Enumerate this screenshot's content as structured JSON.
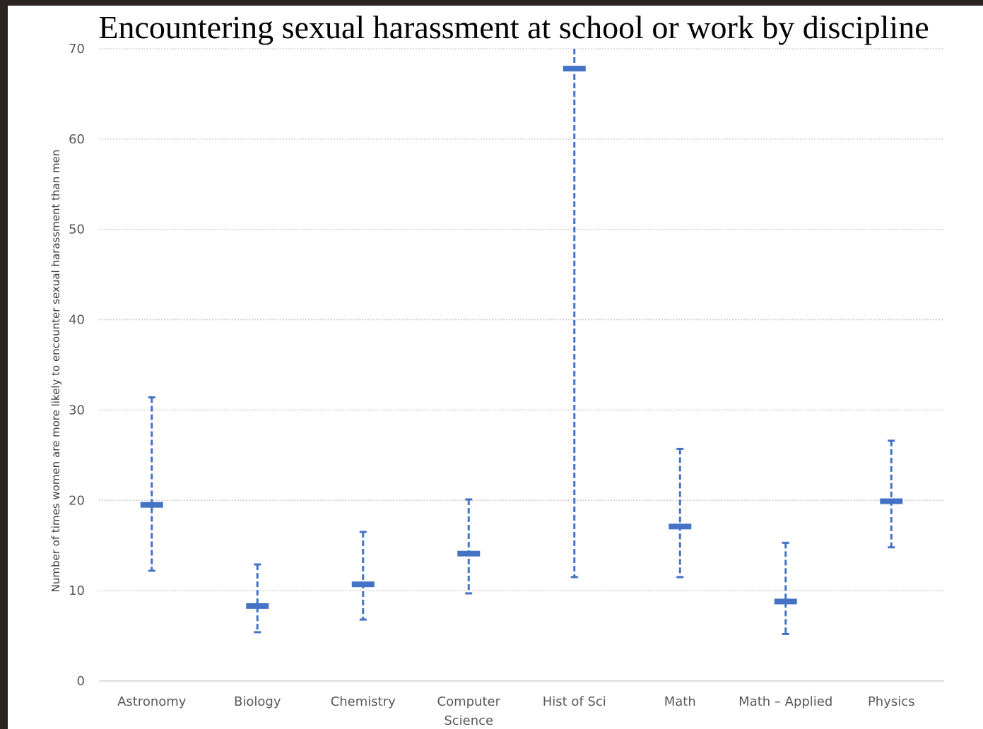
{
  "chart_data": {
    "type": "scatter",
    "subtype": "error-bar",
    "title": "Encountering sexual harassment at school or work by discipline",
    "xlabel": "",
    "ylabel": "Number of times women are more likely to encounter sexual harassment than men",
    "ylim": [
      0,
      70
    ],
    "yticks": [
      0,
      10,
      20,
      30,
      40,
      50,
      60,
      70
    ],
    "grid": "horizontal-dotted",
    "legend": "none",
    "color": "#4472c4",
    "categories": [
      [
        "Astronomy"
      ],
      [
        "Biology"
      ],
      [
        "Chemistry"
      ],
      [
        "Computer",
        "Science"
      ],
      [
        "Hist of Sci"
      ],
      [
        "Math"
      ],
      [
        "Math – Applied"
      ],
      [
        "Physics"
      ]
    ],
    "values": [
      19.5,
      8.3,
      10.7,
      14.1,
      67.8,
      17.1,
      8.8,
      19.9
    ],
    "lower": [
      12.2,
      5.4,
      6.8,
      9.7,
      11.5,
      11.5,
      5.2,
      14.8
    ],
    "upper": [
      31.4,
      12.9,
      16.5,
      20.1,
      70.0,
      25.7,
      15.3,
      26.6
    ]
  }
}
